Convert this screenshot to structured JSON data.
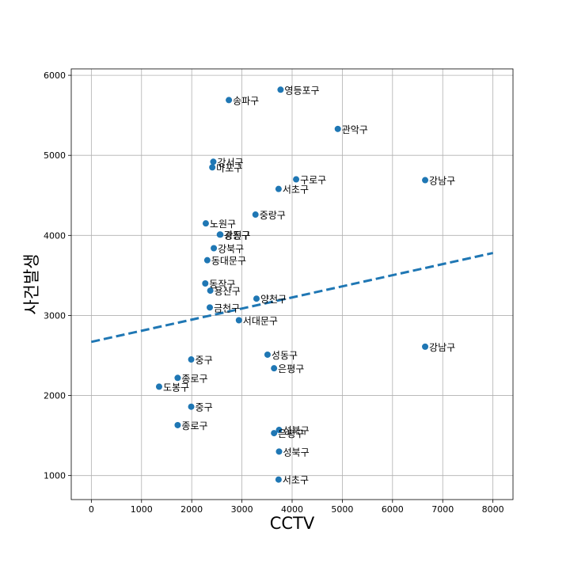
{
  "chart_data": {
    "type": "scatter",
    "title": "",
    "xlabel": "CCTV",
    "ylabel": "사건발생",
    "xlim": [
      -400,
      8400
    ],
    "ylim": [
      700,
      6080
    ],
    "xticks": [
      0,
      1000,
      2000,
      3000,
      4000,
      5000,
      6000,
      7000,
      8000
    ],
    "yticks": [
      1000,
      2000,
      3000,
      4000,
      5000,
      6000
    ],
    "grid": true,
    "colors": {
      "point": "#1f77b4",
      "trend": "#1f77b4",
      "grid": "#b0b0b0"
    },
    "points": [
      {
        "label": "영등포구",
        "x": 3770,
        "y": 5820
      },
      {
        "label": "송파구",
        "x": 2740,
        "y": 5690
      },
      {
        "label": "관악구",
        "x": 4910,
        "y": 5330
      },
      {
        "label": "강서구",
        "x": 2430,
        "y": 4920
      },
      {
        "label": "마포구",
        "x": 2410,
        "y": 4850
      },
      {
        "label": "구로구",
        "x": 4080,
        "y": 4700
      },
      {
        "label": "서초구",
        "x": 3730,
        "y": 4580
      },
      {
        "label": "강남구",
        "x": 6650,
        "y": 4690
      },
      {
        "label": "중랑구",
        "x": 3270,
        "y": 4260
      },
      {
        "label": "노원구",
        "x": 2280,
        "y": 4150
      },
      {
        "label": "광진구",
        "x": 2570,
        "y": 4010
      },
      {
        "label": "강동구",
        "x": 2560,
        "y": 4010
      },
      {
        "label": "강북구",
        "x": 2440,
        "y": 3840
      },
      {
        "label": "동대문구",
        "x": 2310,
        "y": 3690
      },
      {
        "label": "동작구",
        "x": 2270,
        "y": 3400
      },
      {
        "label": "용산구",
        "x": 2370,
        "y": 3310
      },
      {
        "label": "양천구",
        "x": 3290,
        "y": 3210
      },
      {
        "label": "금천구",
        "x": 2360,
        "y": 3100
      },
      {
        "label": "서대문구",
        "x": 2940,
        "y": 2940
      },
      {
        "label": "강남구",
        "x": 6650,
        "y": 2610
      },
      {
        "label": "성동구",
        "x": 3510,
        "y": 2510
      },
      {
        "label": "중구",
        "x": 1990,
        "y": 2450
      },
      {
        "label": "은평구",
        "x": 3640,
        "y": 2340
      },
      {
        "label": "종로구",
        "x": 1720,
        "y": 2220
      },
      {
        "label": "도봉구",
        "x": 1350,
        "y": 2110
      },
      {
        "label": "중구",
        "x": 1990,
        "y": 1860
      },
      {
        "label": "종로구",
        "x": 1720,
        "y": 1630
      },
      {
        "label": "성북구",
        "x": 3740,
        "y": 1570
      },
      {
        "label": "은평구",
        "x": 3640,
        "y": 1530
      },
      {
        "label": "성북구",
        "x": 3740,
        "y": 1300
      },
      {
        "label": "서초구",
        "x": 3730,
        "y": 950
      }
    ],
    "trendline": {
      "style": "dashed",
      "x": [
        0,
        8000
      ],
      "y": [
        2670,
        3780
      ]
    }
  }
}
